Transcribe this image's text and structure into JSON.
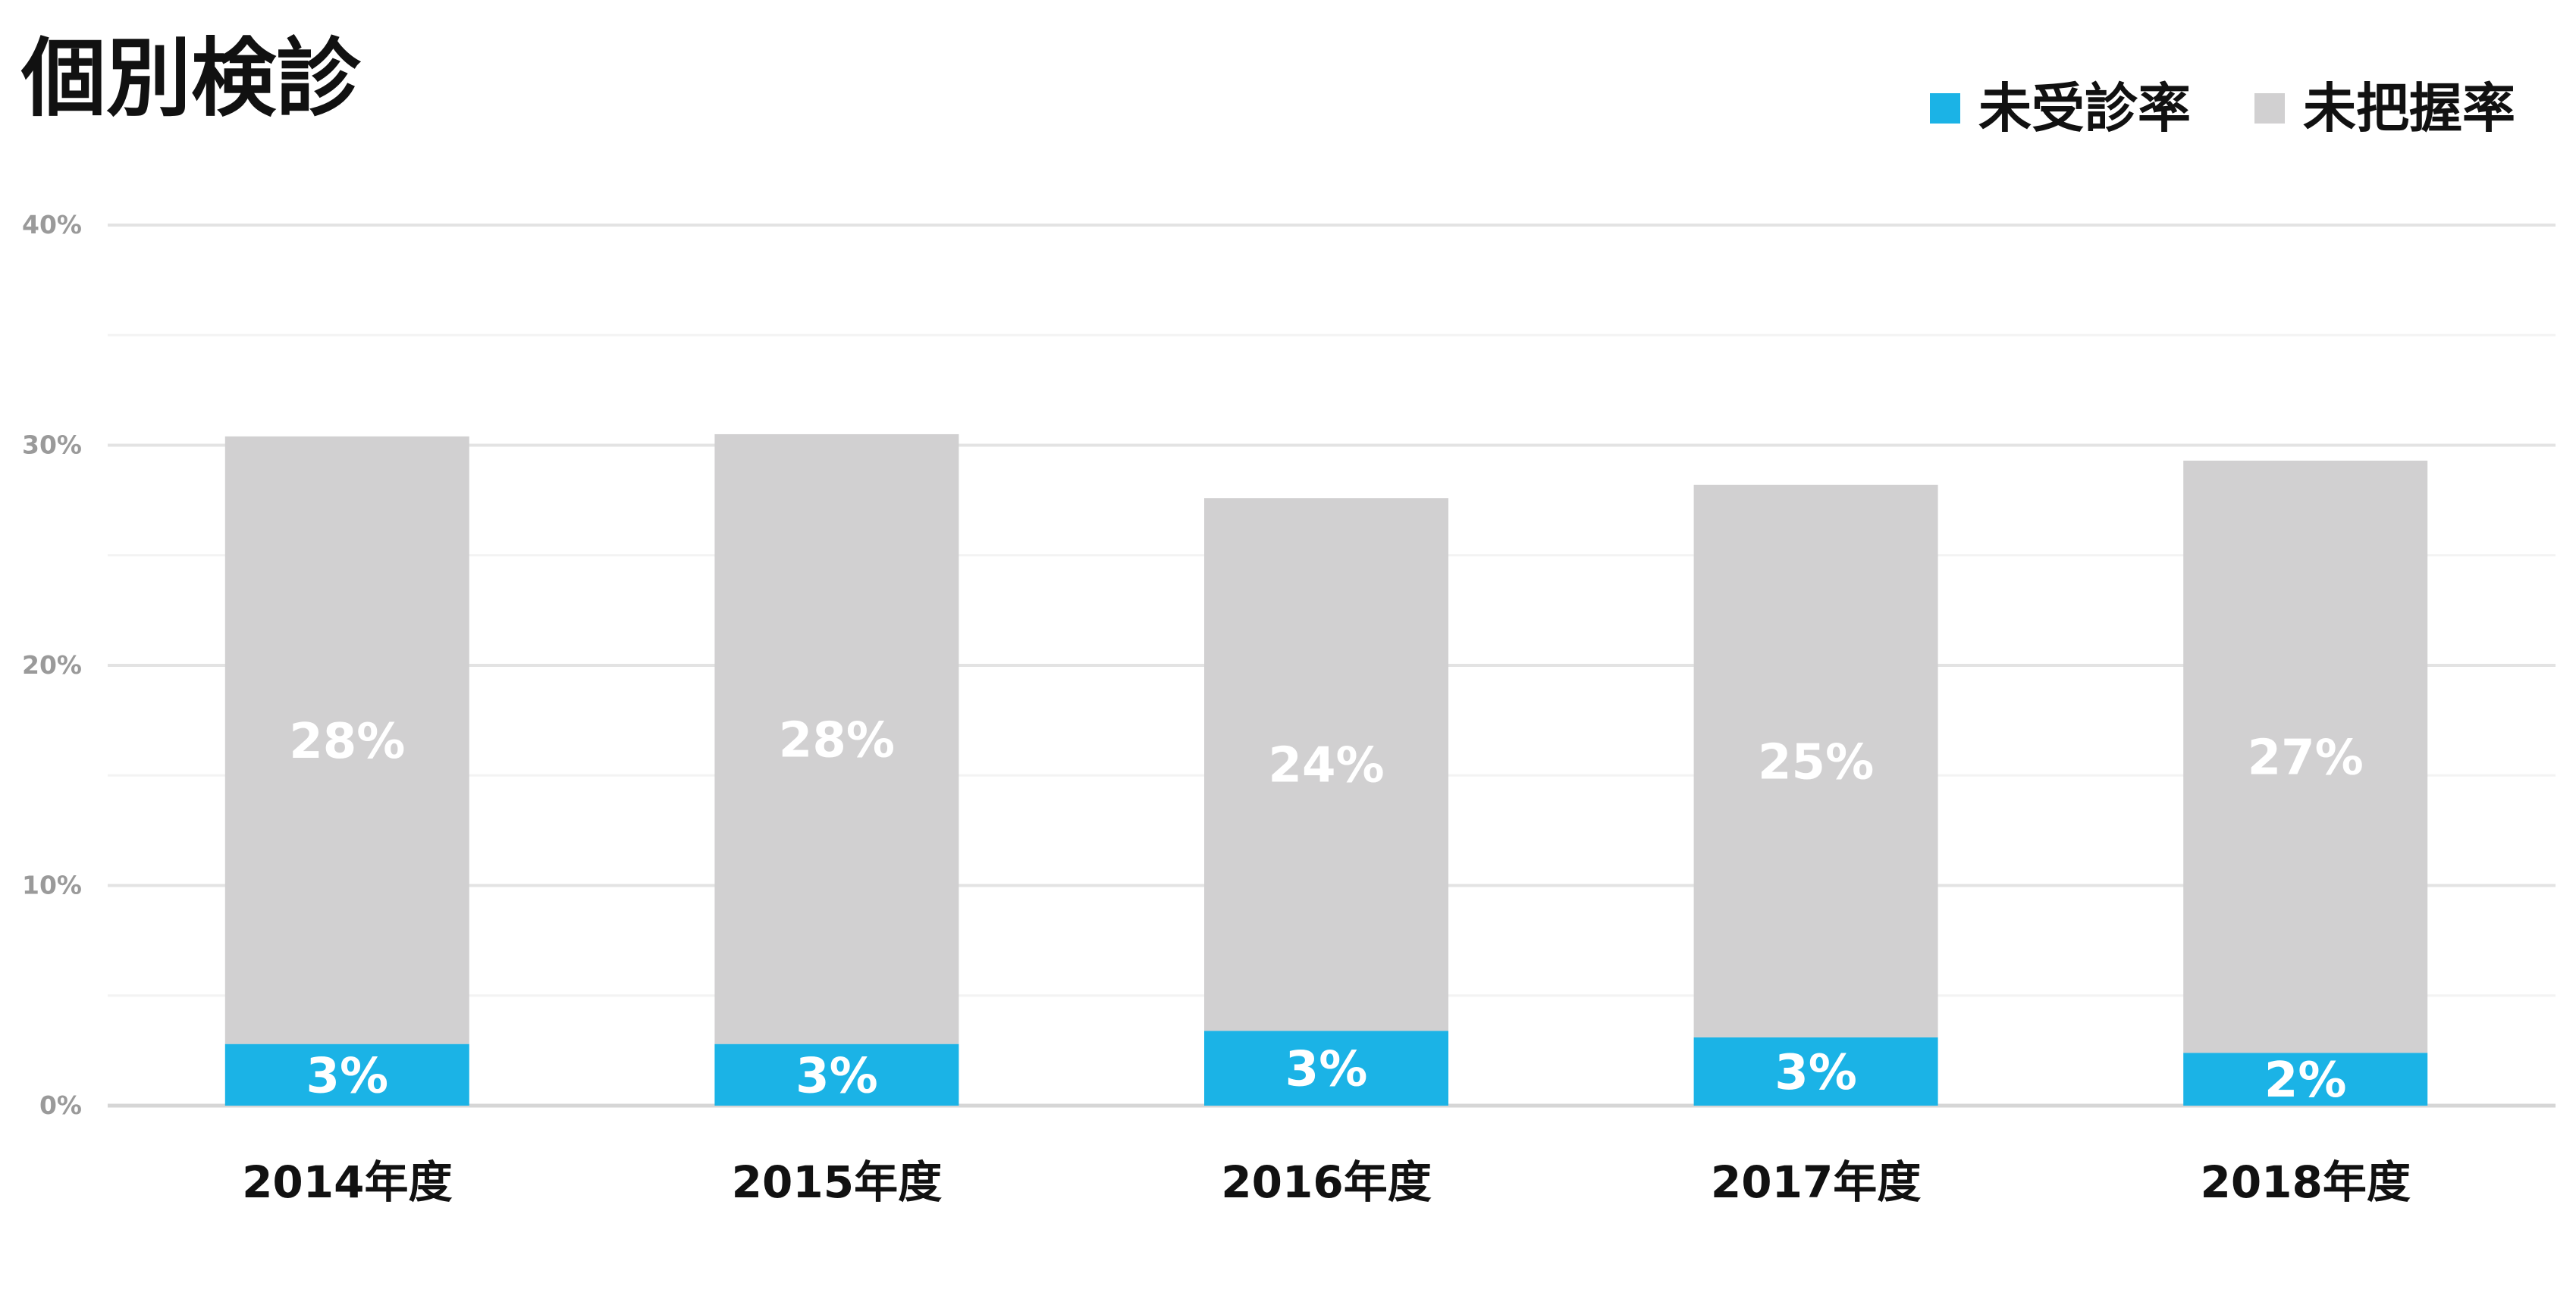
{
  "chart_data": {
    "type": "bar",
    "stacked": true,
    "title": "個別検診",
    "categories": [
      "2014年度",
      "2015年度",
      "2016年度",
      "2017年度",
      "2018年度"
    ],
    "series": [
      {
        "name": "未受診率",
        "color": "#1BB3E6",
        "values": [
          2.8,
          2.8,
          3.4,
          3.1,
          2.4
        ],
        "labels": [
          "3%",
          "3%",
          "3%",
          "3%",
          "2%"
        ]
      },
      {
        "name": "未把握率",
        "color": "#D1D0D1",
        "values": [
          27.6,
          27.7,
          24.2,
          25.1,
          26.9
        ],
        "labels": [
          "28%",
          "28%",
          "24%",
          "25%",
          "27%"
        ]
      }
    ],
    "ylim": [
      0,
      40
    ],
    "yticks": [
      0,
      10,
      20,
      30,
      40
    ],
    "ytick_labels": [
      "0%",
      "10%",
      "20%",
      "30%",
      "40%"
    ],
    "xlabel": "",
    "ylabel": "",
    "grid": true,
    "legend_position": "top-right"
  },
  "colors": {
    "gridline": "#E3E3E3",
    "gridline_minor": "#F3F3F3",
    "axis": "#D6D6D6"
  }
}
